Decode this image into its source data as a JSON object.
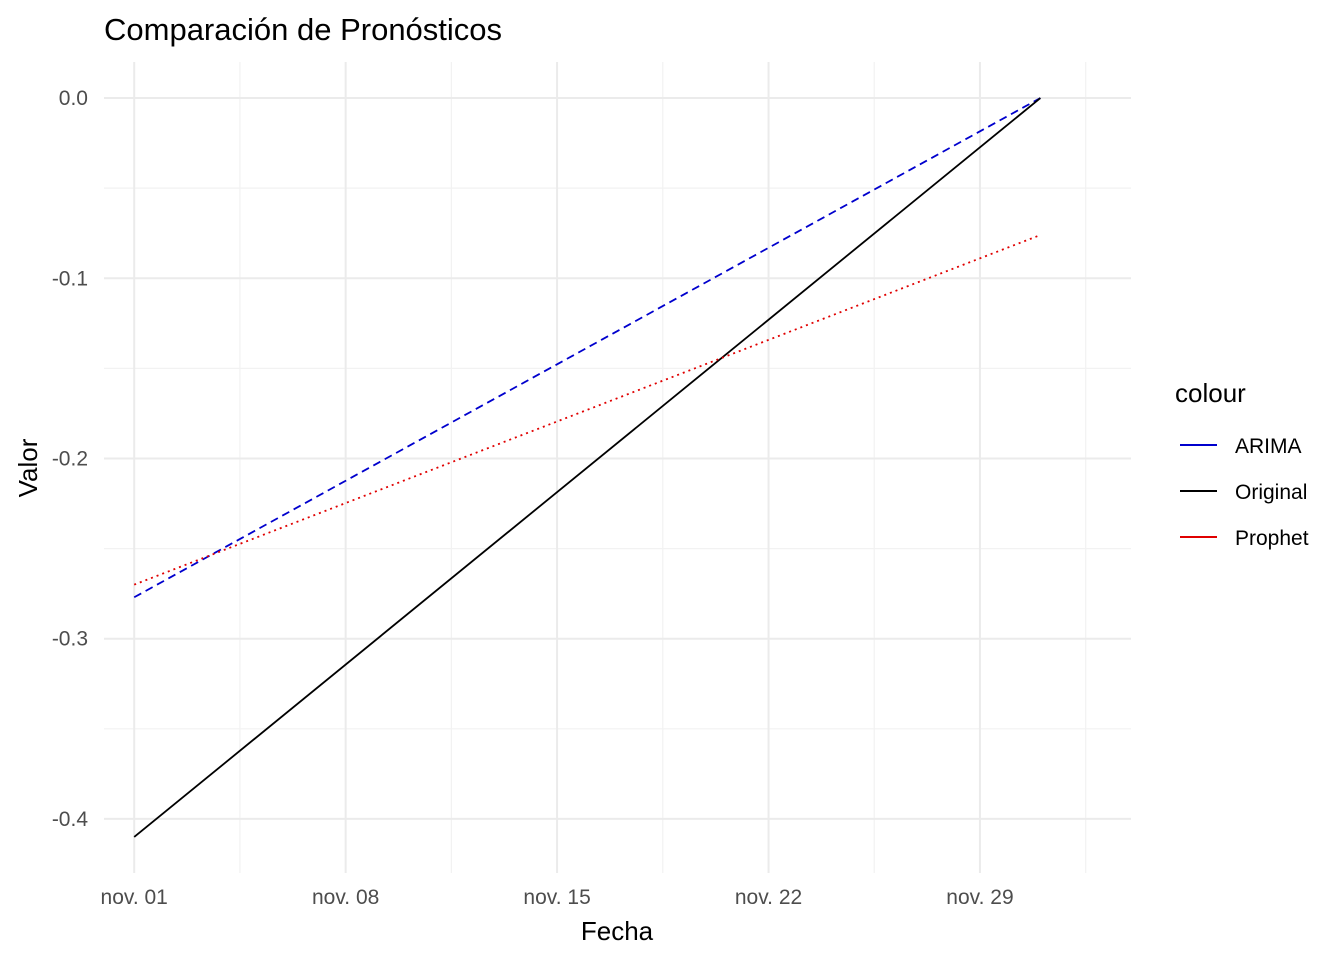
{
  "chart_data": {
    "type": "line",
    "title": "Comparación de Pronósticos",
    "xlabel": "Fecha",
    "ylabel": "Valor",
    "x_type": "date",
    "x_range": [
      "2023-10-31",
      "2023-12-04"
    ],
    "ylim": [
      -0.43,
      0.02
    ],
    "x_ticks": [
      {
        "date": "2023-11-01",
        "label": "nov. 01"
      },
      {
        "date": "2023-11-08",
        "label": "nov. 08"
      },
      {
        "date": "2023-11-15",
        "label": "nov. 15"
      },
      {
        "date": "2023-11-22",
        "label": "nov. 22"
      },
      {
        "date": "2023-11-29",
        "label": "nov. 29"
      }
    ],
    "y_ticks": [
      {
        "value": 0.0,
        "label": "0.0"
      },
      {
        "value": -0.1,
        "label": "-0.1"
      },
      {
        "value": -0.2,
        "label": "-0.2"
      },
      {
        "value": -0.3,
        "label": "-0.3"
      },
      {
        "value": -0.4,
        "label": "-0.4"
      }
    ],
    "grid": true,
    "legend": {
      "title": "colour",
      "position": "right"
    },
    "series": [
      {
        "name": "ARIMA",
        "color": "#0000CD",
        "dash": "dashed",
        "points": [
          {
            "x": "2023-11-01",
            "y": -0.277
          },
          {
            "x": "2023-12-01",
            "y": 0.0
          }
        ]
      },
      {
        "name": "Original",
        "color": "#000000",
        "dash": "solid",
        "points": [
          {
            "x": "2023-11-01",
            "y": -0.41
          },
          {
            "x": "2023-12-01",
            "y": 0.0
          }
        ]
      },
      {
        "name": "Prophet",
        "color": "#E00000",
        "dash": "dotted",
        "points": [
          {
            "x": "2023-11-01",
            "y": -0.27
          },
          {
            "x": "2023-12-01",
            "y": -0.076
          }
        ]
      }
    ]
  }
}
